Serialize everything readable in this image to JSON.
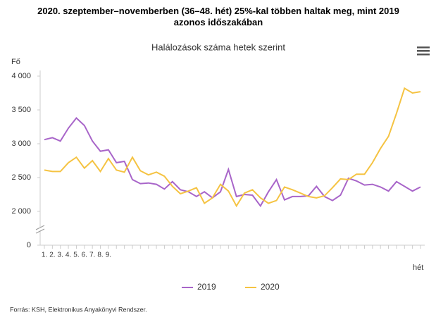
{
  "chart_data": {
    "type": "line",
    "title": "2020. szeptember–novemberben (36–48. hét) 25%-kal többen haltak meg, mint 2019 azonos időszakában",
    "subtitle": "Halálozások száma hetek szerint",
    "y_label": "Fő",
    "x_label": "hét",
    "source": "Forrás: KSH, Elektronikus Anyakönyvi Rendszer.",
    "categories": [
      "1.",
      "2.",
      "3.",
      "4.",
      "5.",
      "6.",
      "7.",
      "8.",
      "9.",
      null,
      null,
      null,
      null,
      null,
      null,
      null,
      null,
      null,
      null,
      null,
      null,
      null,
      null,
      null,
      null,
      null,
      null,
      null,
      null,
      null,
      null,
      null,
      null,
      null,
      null,
      null,
      null,
      null,
      null,
      null,
      null,
      null,
      null,
      null,
      null,
      null,
      null,
      null
    ],
    "series": [
      {
        "name": "2019",
        "color": "#a865c9",
        "values": [
          3060,
          3090,
          3040,
          3230,
          3380,
          3270,
          3040,
          2890,
          2910,
          2720,
          2740,
          2470,
          2410,
          2420,
          2400,
          2330,
          2440,
          2320,
          2290,
          2220,
          2290,
          2200,
          2290,
          2620,
          2220,
          2250,
          2240,
          2080,
          2290,
          2470,
          2170,
          2220,
          2220,
          2230,
          2370,
          2220,
          2160,
          2240,
          2490,
          2450,
          2390,
          2400,
          2360,
          2300,
          2440,
          2370,
          2300,
          2360
        ]
      },
      {
        "name": "2020",
        "color": "#f5c342",
        "values": [
          2610,
          2590,
          2590,
          2720,
          2800,
          2640,
          2750,
          2590,
          2780,
          2610,
          2580,
          2800,
          2600,
          2540,
          2580,
          2520,
          2370,
          2260,
          2300,
          2350,
          2120,
          2200,
          2400,
          2300,
          2080,
          2270,
          2320,
          2200,
          2120,
          2160,
          2360,
          2320,
          2270,
          2220,
          2200,
          2230,
          2350,
          2480,
          2470,
          2550,
          2550,
          2720,
          2930,
          3110,
          3450,
          3820,
          3750,
          3770
        ]
      }
    ],
    "ylim": [
      0,
      4000
    ],
    "axis_break": [
      0,
      2000
    ],
    "yticks": [
      0,
      {
        "value": 2000,
        "label": "2 000"
      },
      {
        "value": 2500,
        "label": "2 500"
      },
      {
        "value": 3000,
        "label": "3 000"
      },
      {
        "value": 3500,
        "label": "3 500"
      },
      {
        "value": 4000,
        "label": "4 000"
      }
    ],
    "grid": false,
    "legend": "bottom"
  }
}
